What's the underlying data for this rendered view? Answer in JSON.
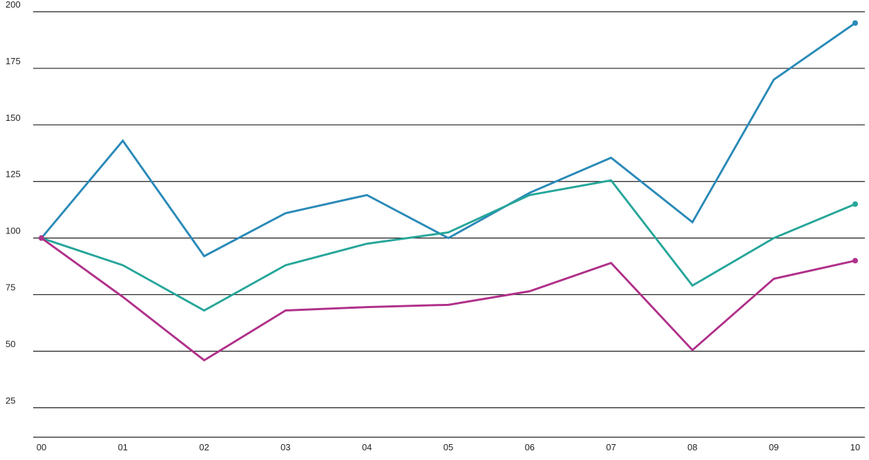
{
  "chart_data": {
    "type": "line",
    "title": "",
    "xlabel": "",
    "ylabel": "",
    "categories": [
      "00",
      "01",
      "02",
      "03",
      "04",
      "05",
      "06",
      "07",
      "08",
      "09",
      "10"
    ],
    "yticks": [
      "25",
      "50",
      "75",
      "100",
      "125",
      "150",
      "175",
      "200"
    ],
    "ylim": [
      12,
      200
    ],
    "grid": true,
    "legend": "none",
    "series": [
      {
        "color": "#2a8ab8",
        "values": [
          100,
          143,
          92,
          111,
          119,
          100,
          120,
          135.5,
          107,
          170,
          195
        ]
      },
      {
        "color": "#26a69a",
        "values": [
          100,
          88,
          68,
          88,
          97.5,
          102.5,
          119,
          125.5,
          79,
          100,
          115
        ]
      },
      {
        "color": "#b0308a",
        "values": [
          100,
          74,
          46,
          68,
          69.5,
          70.5,
          76.5,
          89,
          50.5,
          82,
          90
        ]
      }
    ]
  }
}
